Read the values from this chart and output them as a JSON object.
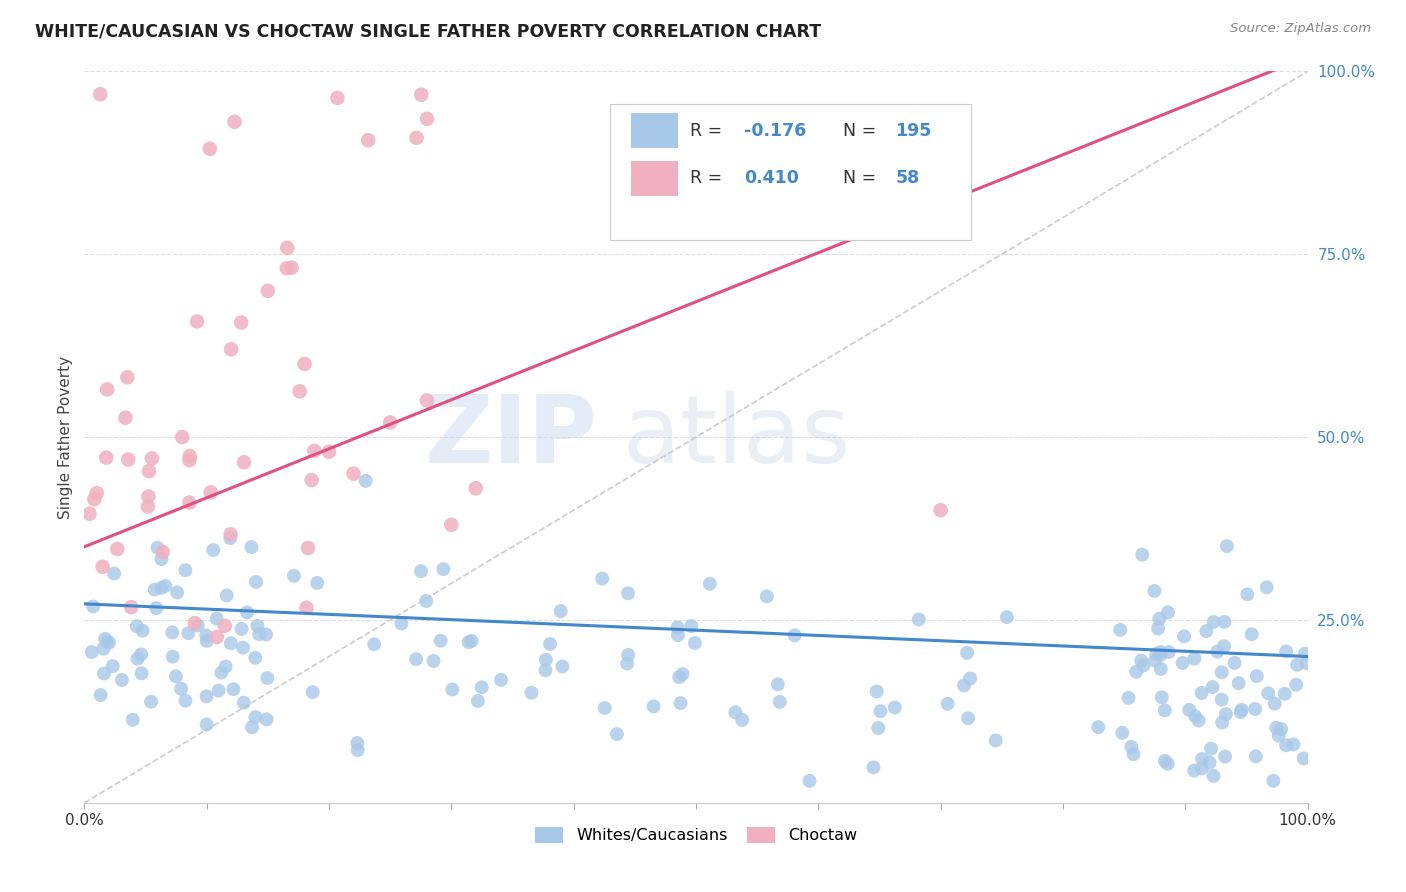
{
  "title": "WHITE/CAUCASIAN VS CHOCTAW SINGLE FATHER POVERTY CORRELATION CHART",
  "source": "Source: ZipAtlas.com",
  "ylabel": "Single Father Poverty",
  "right_yticks": [
    "100.0%",
    "75.0%",
    "50.0%",
    "25.0%"
  ],
  "right_ytick_vals": [
    1.0,
    0.75,
    0.5,
    0.25
  ],
  "blue_color": "#a8c8e8",
  "pink_color": "#f0b0c0",
  "blue_line_color": "#4488cc",
  "pink_line_color": "#e05080",
  "blue_R": -0.176,
  "pink_R": 0.41,
  "blue_N": 195,
  "pink_N": 58,
  "watermark_zip": "ZIP",
  "watermark_atlas": "atlas",
  "background_color": "#ffffff",
  "grid_color": "#dddddd",
  "right_tick_color": "#4488cc",
  "title_color": "#222222",
  "source_color": "#888888",
  "legend_R_color": "#222222",
  "legend_N_color": "#4488cc",
  "legend_val_color": "#4488cc"
}
